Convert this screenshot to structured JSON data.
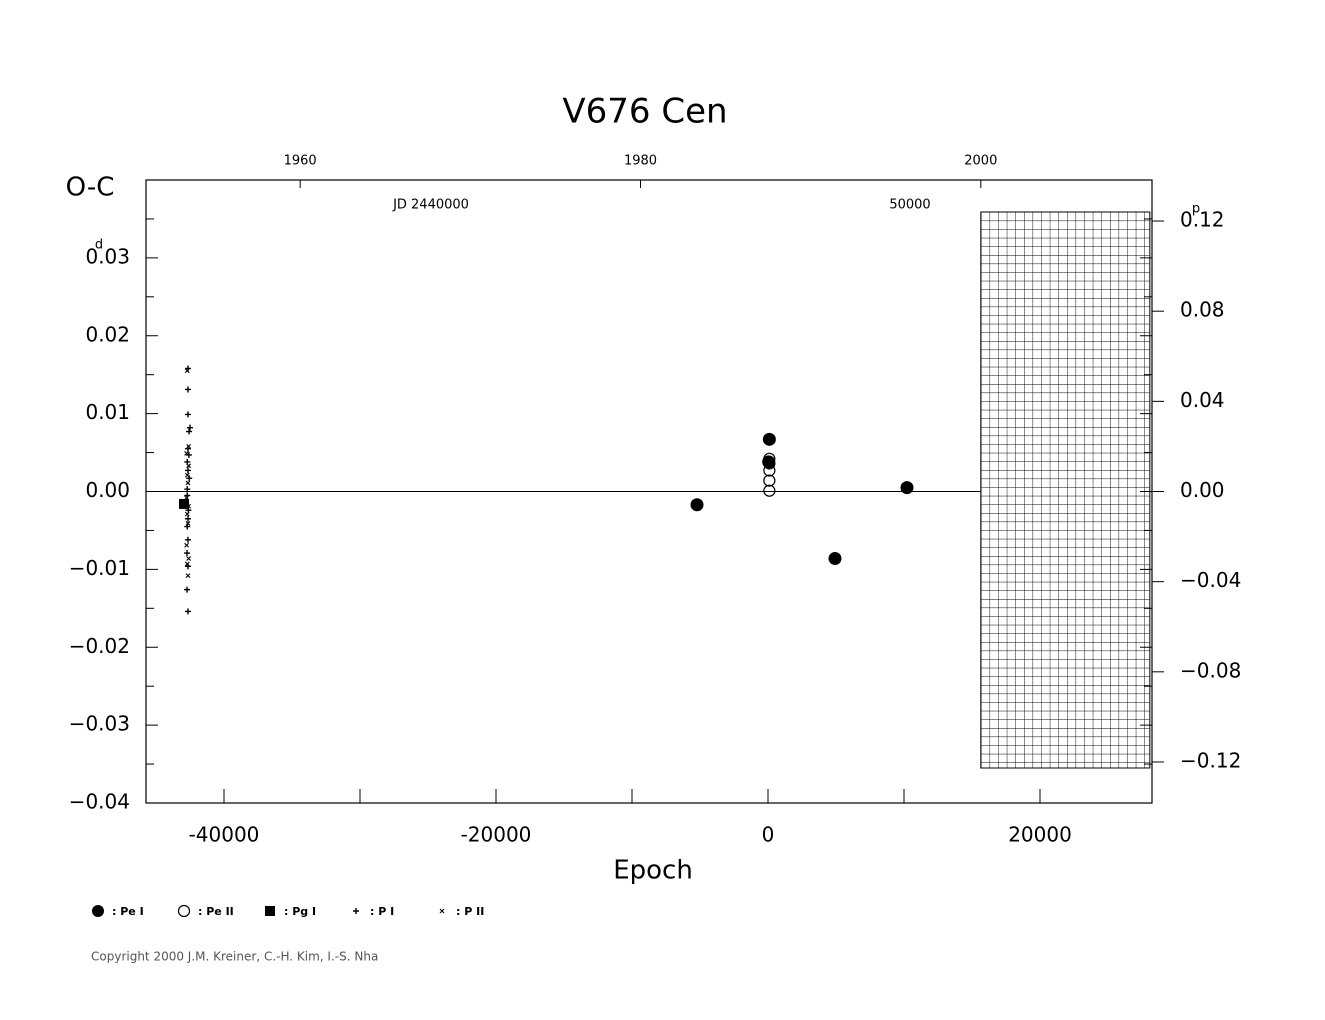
{
  "chart_data": {
    "type": "scatter",
    "title": "V676  Cen",
    "y_label": "O-C",
    "y_unit": "d",
    "y2_unit": "p",
    "x_label": "Epoch",
    "top_axis_labels": [
      "JD 2440000",
      "50000"
    ],
    "top_xlim": [
      1950.94,
      2010.06
    ],
    "top_xticks": [
      1960,
      1980,
      2000
    ],
    "xlim": [
      -45735,
      28235
    ],
    "xticks": [
      -40000,
      -20000,
      0,
      20000
    ],
    "xminor": [
      -30000,
      -10000,
      10000
    ],
    "ylim": [
      -0.04,
      0.04
    ],
    "yticks": [
      {
        "value": -0.04,
        "label": "−0.04"
      },
      {
        "value": -0.03,
        "label": "−0.03"
      },
      {
        "value": -0.02,
        "label": "−0.02"
      },
      {
        "value": -0.01,
        "label": "−0.01"
      },
      {
        "value": 0,
        "label": "0.00"
      },
      {
        "value": 0.01,
        "label": "0.01"
      },
      {
        "value": 0.02,
        "label": "0.02"
      },
      {
        "value": 0.03,
        "label": "0.03"
      }
    ],
    "yminor": [
      -0.035,
      -0.025,
      -0.015,
      -0.005,
      0.005,
      0.015,
      0.025,
      0.035
    ],
    "y2lim": [
      -0.1382,
      0.1382
    ],
    "y2ticks": [
      {
        "value": -0.12,
        "label": "−0.12"
      },
      {
        "value": -0.08,
        "label": "−0.08"
      },
      {
        "value": -0.04,
        "label": "−0.04"
      },
      {
        "value": 0,
        "label": "0.00"
      },
      {
        "value": 0.04,
        "label": "0.04"
      },
      {
        "value": 0.08,
        "label": "0.08"
      },
      {
        "value": 0.12,
        "label": "0.12"
      }
    ],
    "series": [
      {
        "name": ": Pe I",
        "marker": "filled-circle",
        "color": "#000",
        "x": [
          -5220,
          100,
          50,
          4926,
          10220
        ],
        "values": [
          -0.0017,
          0.0067,
          0.0038,
          -0.0086,
          0.0005
        ]
      },
      {
        "name": ": Pe II",
        "marker": "open-circle",
        "color": "#000",
        "x": [
          100,
          100,
          100,
          100,
          100
        ],
        "values": [
          0.0042,
          0.0036,
          0.0027,
          0.0014,
          0.0001
        ]
      },
      {
        "name": ": Pg I",
        "marker": "filled-square",
        "color": "#000",
        "x": [
          -42940
        ],
        "values": [
          -0.0016
        ]
      },
      {
        "name": ": P I",
        "marker": "plus",
        "color": "#000",
        "x": [
          -42650,
          -42650,
          -42650,
          -42500,
          -42570,
          -42650,
          -42580,
          -42700,
          -42650,
          -42560,
          -42700,
          -42620,
          -42650,
          -42700,
          -42650,
          -42720,
          -42650,
          -42720,
          -42650,
          -42700
        ],
        "values": [
          0.0158,
          0.0131,
          0.0099,
          0.0082,
          0.0077,
          0.0055,
          0.0047,
          0.0038,
          0.0027,
          0.0017,
          -0.0005,
          -0.0024,
          -0.0035,
          -0.0045,
          -0.0062,
          -0.0079,
          -0.0096,
          -0.0126,
          -0.0154,
          0.0003
        ]
      },
      {
        "name": ": P II",
        "marker": "cross",
        "color": "#000",
        "x": [
          -42700,
          -42600,
          -42750,
          -42600,
          -42700,
          -42650,
          -42750,
          -42600,
          -42700,
          -42650,
          -42750,
          -42600,
          -42700,
          -42650
        ],
        "values": [
          0.0155,
          0.0058,
          0.0049,
          0.0033,
          0.0021,
          0.0011,
          -0.0008,
          -0.0019,
          -0.0029,
          -0.0041,
          -0.0069,
          -0.0086,
          -0.0093,
          -0.0108
        ]
      }
    ],
    "copyright": "Copyright 2000 J.M. Kreiner, C.-H. Kim, I.-S. Nha"
  }
}
